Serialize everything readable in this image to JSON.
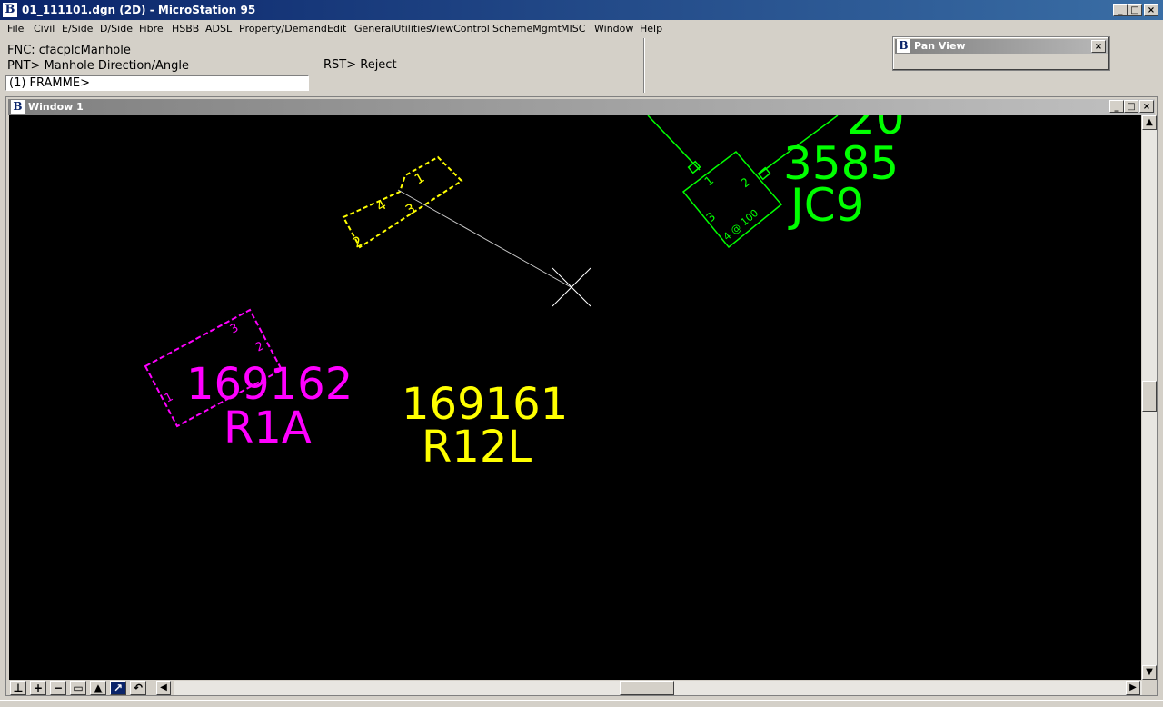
{
  "app": {
    "title": "01_111101.dgn (2D) - MicroStation 95",
    "icon": "microstation-icon"
  },
  "window_controls": {
    "minimize": "_",
    "maximize": "□",
    "close": "×"
  },
  "menu": [
    {
      "label": "File"
    },
    {
      "label": "Civil"
    },
    {
      "label": "E/Side"
    },
    {
      "label": "D/Side"
    },
    {
      "label": "Fibre"
    },
    {
      "label": "HSBB"
    },
    {
      "label": "ADSL"
    },
    {
      "label": "Property/Demand"
    },
    {
      "label": "Edit"
    },
    {
      "label": "GeneralUtilities"
    },
    {
      "label": "ViewControl"
    },
    {
      "label": "SchemeMgmt"
    },
    {
      "label": "MISC"
    },
    {
      "label": "Window"
    },
    {
      "label": "Help"
    }
  ],
  "command": {
    "fnc": "FNC: cfacplcManhole",
    "pnt": "PNT> Manhole Direction/Angle",
    "rst": "RST> Reject",
    "prompt_value": "(1) FRAMME>"
  },
  "pan_view": {
    "title": "Pan View",
    "close": "×"
  },
  "view_window": {
    "title": "Window 1"
  },
  "drawing": {
    "magenta": {
      "number": "169162",
      "code": "R1A",
      "color": "#ff00ff",
      "side_labels": [
        "1",
        "2",
        "3"
      ]
    },
    "yellow": {
      "number": "169161",
      "code": "R12L",
      "color": "#ffff00",
      "side_labels": [
        "1",
        "2",
        "3",
        "4"
      ]
    },
    "green": {
      "number": "3585",
      "code": "JC9",
      "color": "#00ff00",
      "partial_text": "20",
      "side_labels": [
        "1",
        "2",
        "3"
      ],
      "inner_text": "4 @ 100"
    },
    "crosshair_color": "#ffffff"
  },
  "scroll": {
    "up": "▲",
    "down": "▼",
    "left": "◀",
    "right": "▶"
  },
  "view_tools": [
    {
      "name": "update-view-icon",
      "glyph": "⊥"
    },
    {
      "name": "zoom-in-icon",
      "glyph": "+"
    },
    {
      "name": "zoom-out-icon",
      "glyph": "−"
    },
    {
      "name": "window-area-icon",
      "glyph": "▭"
    },
    {
      "name": "fit-view-icon",
      "glyph": "▲"
    },
    {
      "name": "rotate-view-icon",
      "glyph": "↗"
    },
    {
      "name": "view-previous-icon",
      "glyph": "↶"
    }
  ]
}
